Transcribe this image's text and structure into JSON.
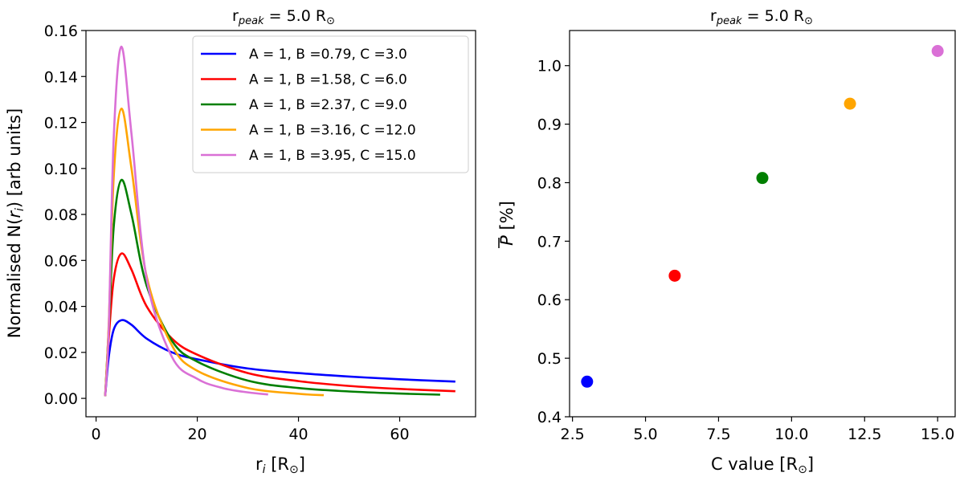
{
  "chart_data": [
    {
      "type": "line",
      "title": "r_peak = 5.0 R_sun",
      "title_parts": {
        "base": "r",
        "sub": "peak",
        "rest": " = 5.0 R",
        "sub2": "⊙"
      },
      "xlabel": "r_i [R_sun]",
      "xlabel_parts": {
        "base": "r",
        "sub": "i",
        "rest": " [R",
        "sub2": "⊙",
        "end": "]"
      },
      "ylabel": "Normalised N(r_i) [arb units]",
      "ylabel_parts": {
        "base": "Normalised N(",
        "it": "r",
        "sub": "i",
        "end": ") [arb units]"
      },
      "xlim": [
        -2,
        75
      ],
      "ylim": [
        -0.008,
        0.16
      ],
      "xticks": [
        0,
        20,
        40,
        60
      ],
      "xtick_labels": [
        "0",
        "20",
        "40",
        "60"
      ],
      "yticks": [
        0.0,
        0.02,
        0.04,
        0.06,
        0.08,
        0.1,
        0.12,
        0.14,
        0.16
      ],
      "ytick_labels": [
        "0.00",
        "0.02",
        "0.04",
        "0.06",
        "0.08",
        "0.10",
        "0.12",
        "0.14",
        "0.16"
      ],
      "grid": false,
      "legend_position": "top-right",
      "series": [
        {
          "name": "A = 1, B =0.79, C =3.0",
          "color": "#0000ff",
          "xmax": 71,
          "x": [
            1.8,
            2.5,
            3.5,
            5,
            7,
            10,
            15,
            20,
            30,
            40,
            50,
            60,
            71
          ],
          "y": [
            0.001,
            0.018,
            0.03,
            0.034,
            0.032,
            0.026,
            0.02,
            0.017,
            0.013,
            0.011,
            0.0095,
            0.0083,
            0.0073
          ]
        },
        {
          "name": "A = 1, B =1.58, C =6.0",
          "color": "#ff0000",
          "xmax": 71,
          "x": [
            1.8,
            2.5,
            3.5,
            5,
            7,
            10,
            15,
            20,
            30,
            40,
            50,
            60,
            71
          ],
          "y": [
            0.001,
            0.026,
            0.052,
            0.063,
            0.056,
            0.04,
            0.026,
            0.019,
            0.011,
            0.0075,
            0.0054,
            0.0041,
            0.0031
          ]
        },
        {
          "name": "A = 1, B =2.37, C =9.0",
          "color": "#007f00",
          "xmax": 68,
          "x": [
            1.8,
            2.5,
            3.5,
            5,
            7,
            10,
            15,
            20,
            30,
            40,
            50,
            60,
            68
          ],
          "y": [
            0.001,
            0.03,
            0.075,
            0.095,
            0.08,
            0.049,
            0.025,
            0.016,
            0.0077,
            0.0045,
            0.003,
            0.0021,
            0.0016
          ]
        },
        {
          "name": "A = 1, B =3.16, C =12.0",
          "color": "#ffa500",
          "xmax": 45,
          "x": [
            1.8,
            2.5,
            3.5,
            5,
            7,
            10,
            15,
            20,
            30,
            40,
            45
          ],
          "y": [
            0.001,
            0.032,
            0.097,
            0.126,
            0.1,
            0.053,
            0.023,
            0.012,
            0.0045,
            0.002,
            0.0014
          ]
        },
        {
          "name": "A = 1, B =3.95, C =15.0",
          "color": "#da70d6",
          "xmax": 34,
          "x": [
            1.8,
            2.5,
            3.5,
            5,
            7,
            10,
            15,
            20,
            25,
            30,
            34
          ],
          "y": [
            0.001,
            0.03,
            0.114,
            0.153,
            0.115,
            0.052,
            0.018,
            0.0085,
            0.0045,
            0.0026,
            0.0017
          ]
        }
      ]
    },
    {
      "type": "scatter",
      "title": "r_peak = 5.0 R_sun",
      "title_parts": {
        "base": "r",
        "sub": "peak",
        "rest": " = 5.0 R",
        "sub2": "⊙"
      },
      "xlabel": "C value [R_sun]",
      "xlabel_parts": {
        "base": "C value [R",
        "sub2": "⊙",
        "end": "]"
      },
      "ylabel": "P̄ [%]",
      "ylabel_parts": {
        "base": "P",
        "end": " [%]"
      },
      "xlim": [
        2.4,
        15.6
      ],
      "ylim": [
        0.4,
        1.06
      ],
      "xticks": [
        2.5,
        5.0,
        7.5,
        10.0,
        12.5,
        15.0
      ],
      "xtick_labels": [
        "2.5",
        "5.0",
        "7.5",
        "10.0",
        "12.5",
        "15.0"
      ],
      "yticks": [
        0.4,
        0.5,
        0.6,
        0.7,
        0.8,
        0.9,
        1.0
      ],
      "ytick_labels": [
        "0.4",
        "0.5",
        "0.6",
        "0.7",
        "0.8",
        "0.9",
        "1.0"
      ],
      "grid": false,
      "points": [
        {
          "x": 3.0,
          "y": 0.46,
          "color": "#0000ff"
        },
        {
          "x": 6.0,
          "y": 0.641,
          "color": "#ff0000"
        },
        {
          "x": 9.0,
          "y": 0.808,
          "color": "#007f00"
        },
        {
          "x": 12.0,
          "y": 0.935,
          "color": "#ffa500"
        },
        {
          "x": 15.0,
          "y": 1.025,
          "color": "#da70d6"
        }
      ]
    }
  ]
}
